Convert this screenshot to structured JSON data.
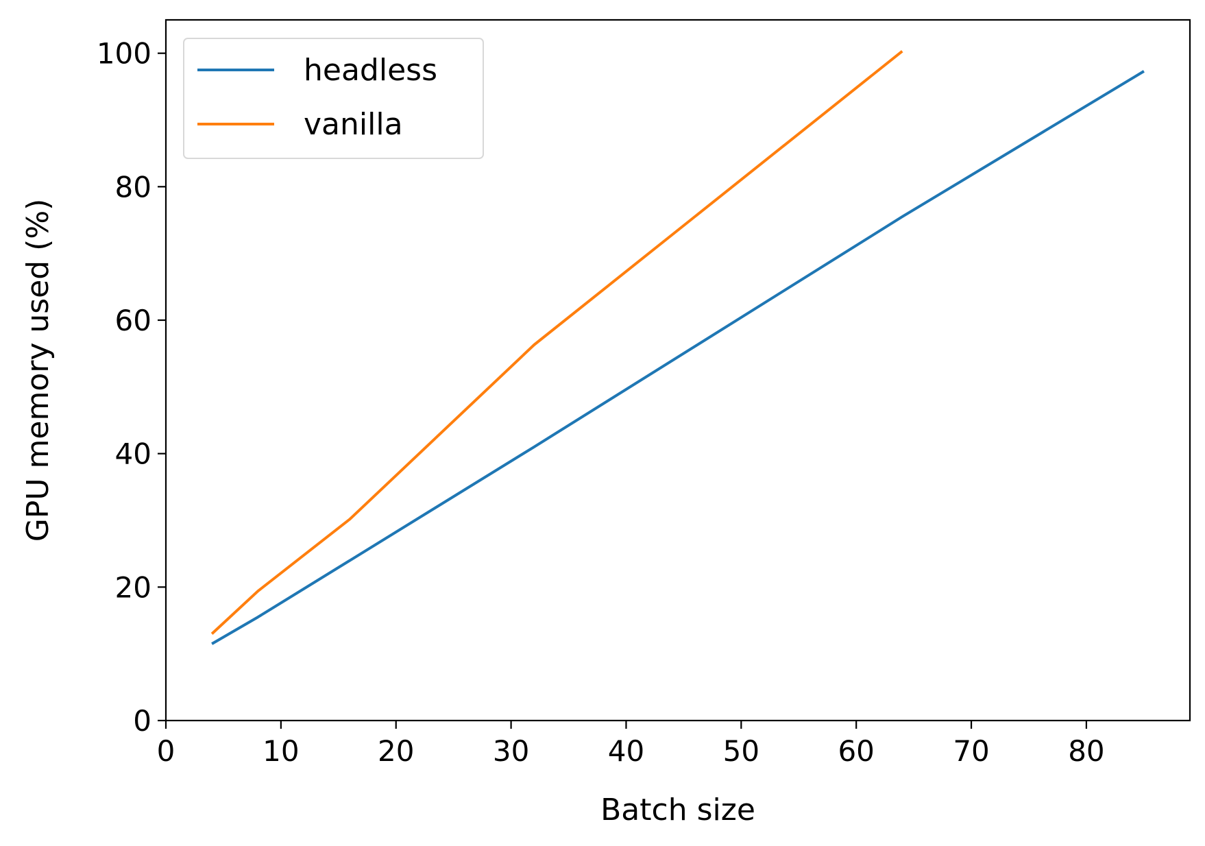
{
  "chart_data": {
    "type": "line",
    "title": "",
    "xlabel": "Batch size",
    "ylabel": "GPU memory used (%)",
    "xlim": [
      0,
      89
    ],
    "ylim": [
      0,
      105
    ],
    "xticks": [
      0,
      10,
      20,
      30,
      40,
      50,
      60,
      70,
      80
    ],
    "yticks": [
      0,
      20,
      40,
      60,
      80,
      100
    ],
    "grid": false,
    "legend": "top-left",
    "series": [
      {
        "name": "headless",
        "color": "#1f77b4",
        "x": [
          4,
          8,
          16,
          32,
          64,
          85
        ],
        "y": [
          11.5,
          15.5,
          24,
          41,
          75.5,
          97.3
        ]
      },
      {
        "name": "vanilla",
        "color": "#ff7f0e",
        "x": [
          4,
          8,
          16,
          32,
          64
        ],
        "y": [
          13,
          19.4,
          30.2,
          56.3,
          100.3
        ]
      }
    ]
  }
}
